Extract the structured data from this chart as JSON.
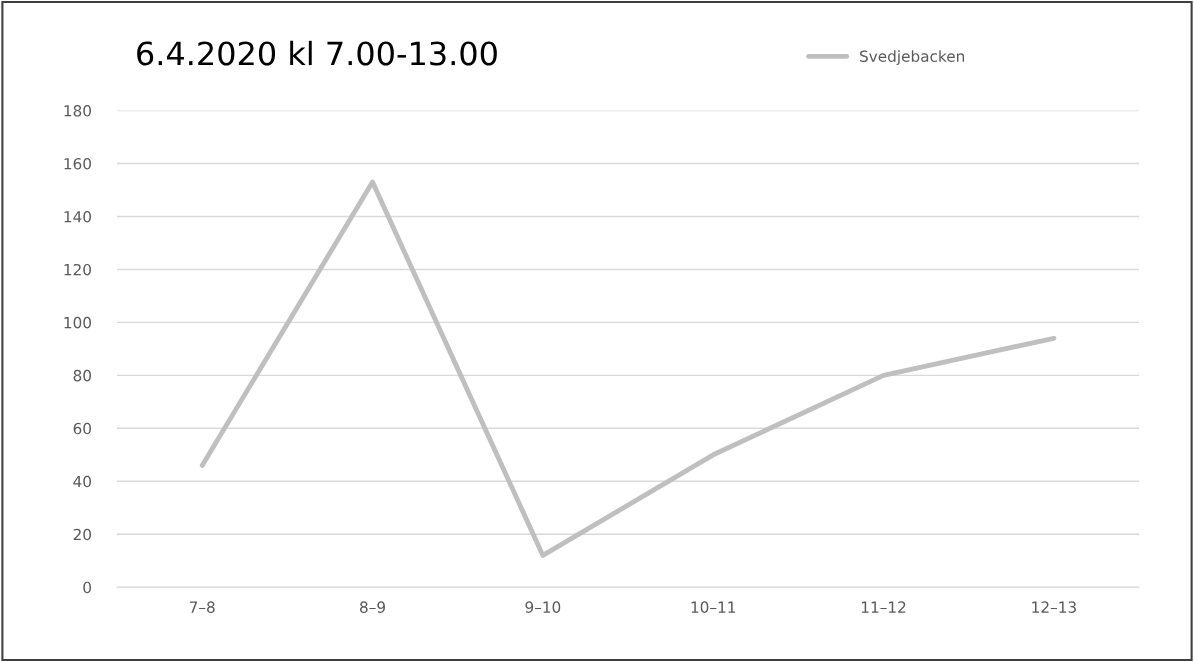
{
  "chart_data": {
    "type": "line",
    "title": "6.4.2020 kl 7.00-13.00",
    "categories": [
      "7–8",
      "8–9",
      "9–10",
      "10–11",
      "11–12",
      "12–13"
    ],
    "series": [
      {
        "name": "Svedjebacken",
        "color": "#bfbfbf",
        "values": [
          46,
          153,
          12,
          50,
          80,
          94
        ]
      }
    ],
    "ylim": [
      0,
      180
    ],
    "yticks": [
      0,
      20,
      40,
      60,
      80,
      100,
      120,
      140,
      160,
      180
    ],
    "grid": "y",
    "legend": "top right",
    "line_style": "solid",
    "marker": "none"
  }
}
